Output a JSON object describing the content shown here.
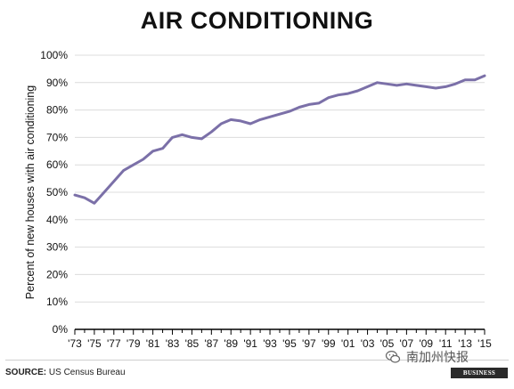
{
  "colors": {
    "line": "#7b70a8",
    "axis": "#000000",
    "grid": "#dcdcdc"
  },
  "chart_data": {
    "type": "line",
    "title": "AIR CONDITIONING",
    "ylabel": "Percent of new houses with air conditioning",
    "xlabel": "",
    "ylim": [
      0,
      100
    ],
    "xlim": [
      1973,
      2015
    ],
    "y_ticks": [
      "0%",
      "10%",
      "20%",
      "30%",
      "40%",
      "50%",
      "60%",
      "70%",
      "80%",
      "90%",
      "100%"
    ],
    "x_tick_labels": [
      "'73",
      "'75",
      "'77",
      "'79",
      "'81",
      "'83",
      "'85",
      "'87",
      "'89",
      "'91",
      "'93",
      "'95",
      "'97",
      "'99",
      "'01",
      "'03",
      "'05",
      "'07",
      "'09",
      "'11",
      "'13",
      "'15"
    ],
    "grid": true,
    "series": [
      {
        "x": [
          1973,
          1974,
          1975,
          1976,
          1977,
          1978,
          1979,
          1980,
          1981,
          1982,
          1983,
          1984,
          1985,
          1986,
          1987,
          1988,
          1989,
          1990,
          1991,
          1992,
          1993,
          1994,
          1995,
          1996,
          1997,
          1998,
          1999,
          2000,
          2001,
          2002,
          2003,
          2004,
          2005,
          2006,
          2007,
          2008,
          2009,
          2010,
          2011,
          2012,
          2013,
          2014,
          2015
        ],
        "values": [
          49,
          48,
          46,
          50,
          54,
          58,
          60,
          62,
          65,
          66,
          70,
          71,
          70,
          69.5,
          72,
          75,
          76.5,
          76,
          75,
          76.5,
          77.5,
          78.5,
          79.5,
          81,
          82,
          82.5,
          84.5,
          85.5,
          86,
          87,
          88.5,
          90,
          89.5,
          89,
          89.5,
          89,
          88.5,
          88,
          88.5,
          89.5,
          91,
          91,
          92.5
        ]
      }
    ]
  },
  "footer": {
    "source_label": "SOURCE:",
    "source_text": "US Census Bureau",
    "brand": "BUSINESS INSIDER",
    "watermark": "南加州快报",
    "watermark_icon": "wechat-icon"
  }
}
